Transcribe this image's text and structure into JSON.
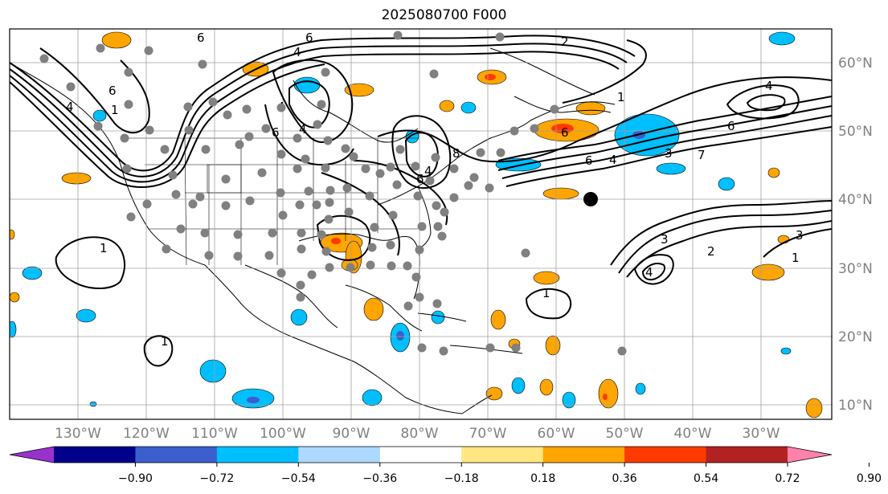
{
  "title": "2025080700 F000",
  "lat_labels": [
    "60°N",
    "50°N",
    "40°N",
    "30°N",
    "20°N",
    "10°N"
  ],
  "lon_labels": [
    "130°W",
    "120°W",
    "110°W",
    "100°W",
    "90°W",
    "80°W",
    "70°W",
    "60°W",
    "50°W",
    "40°W",
    "30°W"
  ],
  "colorbar": {
    "colors": [
      "#9932cc",
      "#00008b",
      "#3a5fcd",
      "#00bfff",
      "#add8ff",
      "#ffffff",
      "#ffe680",
      "#ffa500",
      "#ff3a00",
      "#b22222",
      "#ff82ab"
    ],
    "ticks": [
      "−0.90",
      "−0.72",
      "−0.54",
      "−0.36",
      "−0.18",
      "0.18",
      "0.36",
      "0.54",
      "0.72",
      "0.90"
    ]
  },
  "contour_labels": [
    "6",
    "6",
    "4",
    "6",
    "6",
    "8",
    "6",
    "1",
    "6",
    "4",
    "6",
    "4",
    "4",
    "4",
    "1",
    "1",
    "3",
    "2",
    "1",
    "2",
    "3",
    "4",
    "7",
    "6",
    "4",
    "3",
    "1",
    "4",
    "1"
  ],
  "colors": {
    "contour": "#000000",
    "coast": "#000000",
    "grid": "#a0a0a0",
    "station": "#808080",
    "marker": "#000000"
  }
}
